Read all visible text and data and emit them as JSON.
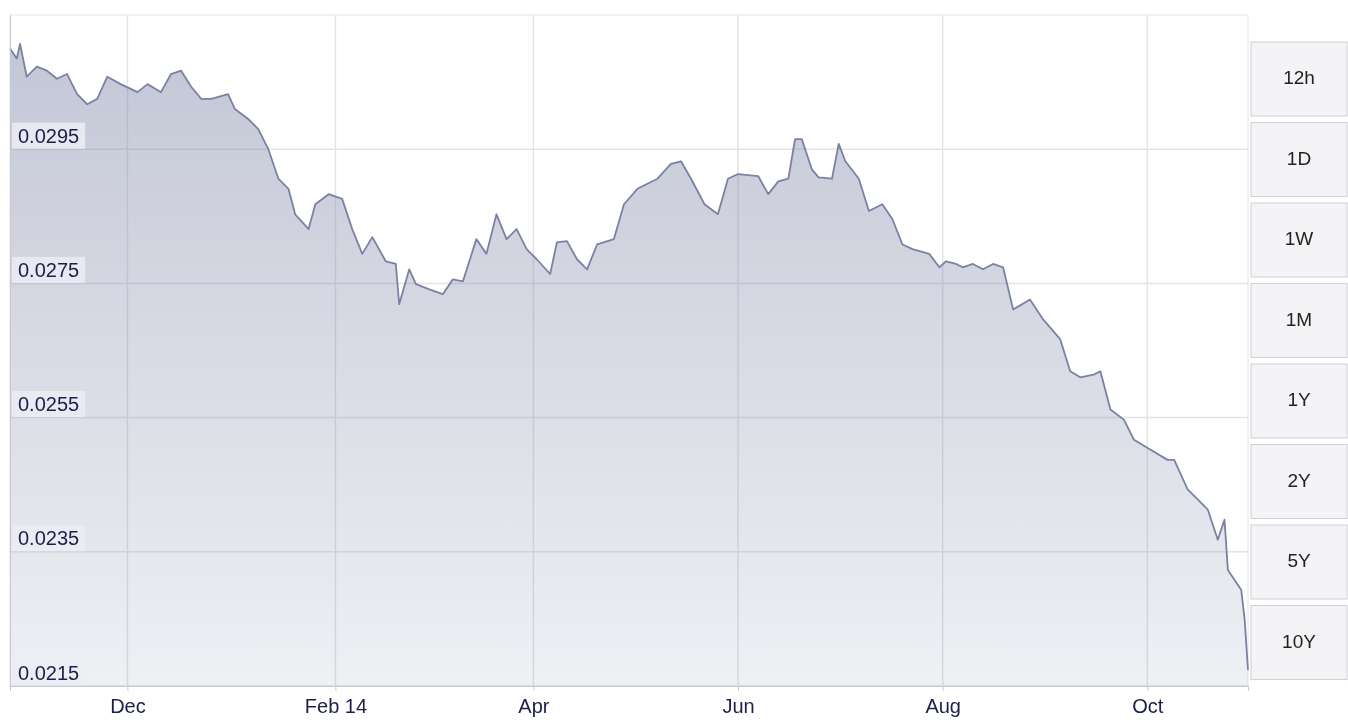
{
  "chart_data": {
    "type": "area",
    "xlim": [
      "2013-10-27",
      "2014-10-31"
    ],
    "ylim": [
      0.0215,
      0.0315
    ],
    "xticks": [
      {
        "value": "2013-12-01",
        "label": "Dec"
      },
      {
        "value": "2014-02-01",
        "label": "Feb 14"
      },
      {
        "value": "2014-04-01",
        "label": "Apr"
      },
      {
        "value": "2014-06-01",
        "label": "Jun"
      },
      {
        "value": "2014-08-01",
        "label": "Aug"
      },
      {
        "value": "2014-10-01",
        "label": "Oct"
      }
    ],
    "yticks": [
      0.0215,
      0.0235,
      0.0255,
      0.0275,
      0.0295
    ],
    "grid": true,
    "annotations": [
      "12h",
      "1D",
      "1W",
      "1M",
      "1Y",
      "2Y",
      "5Y",
      "10Y"
    ],
    "series": [
      {
        "color": "#7a82a3",
        "x": [
          "2013-10-27",
          "2013-10-29",
          "2013-10-30",
          "2013-11-01",
          "2013-11-04",
          "2013-11-07",
          "2013-11-10",
          "2013-11-13",
          "2013-11-16",
          "2013-11-19",
          "2013-11-22",
          "2013-11-25",
          "2013-11-29",
          "2013-12-04",
          "2013-12-07",
          "2013-12-11",
          "2013-12-14",
          "2013-12-17",
          "2013-12-20",
          "2013-12-23",
          "2013-12-26",
          "2013-12-31",
          "2014-01-02",
          "2014-01-06",
          "2014-01-09",
          "2014-01-12",
          "2014-01-15",
          "2014-01-18",
          "2014-01-20",
          "2014-01-24",
          "2014-01-26",
          "2014-01-30",
          "2014-02-03",
          "2014-02-06",
          "2014-02-09",
          "2014-02-12",
          "2014-02-16",
          "2014-02-19",
          "2014-02-20",
          "2014-02-23",
          "2014-02-25",
          "2014-03-01",
          "2014-03-05",
          "2014-03-08",
          "2014-03-11",
          "2014-03-15",
          "2014-03-18",
          "2014-03-21",
          "2014-03-24",
          "2014-03-27",
          "2014-03-30",
          "2014-04-02",
          "2014-04-06",
          "2014-04-08",
          "2014-04-11",
          "2014-04-14",
          "2014-04-17",
          "2014-04-20",
          "2014-04-25",
          "2014-04-28",
          "2014-05-02",
          "2014-05-08",
          "2014-05-12",
          "2014-05-15",
          "2014-05-18",
          "2014-05-22",
          "2014-05-26",
          "2014-05-29",
          "2014-06-01",
          "2014-06-07",
          "2014-06-10",
          "2014-06-13",
          "2014-06-16",
          "2014-06-18",
          "2014-06-20",
          "2014-06-23",
          "2014-06-25",
          "2014-06-29",
          "2014-07-01",
          "2014-07-03",
          "2014-07-07",
          "2014-07-10",
          "2014-07-14",
          "2014-07-17",
          "2014-07-20",
          "2014-07-23",
          "2014-07-28",
          "2014-07-31",
          "2014-08-02",
          "2014-08-05",
          "2014-08-07",
          "2014-08-10",
          "2014-08-13",
          "2014-08-16",
          "2014-08-19",
          "2014-08-22",
          "2014-08-27",
          "2014-08-31",
          "2014-09-05",
          "2014-09-08",
          "2014-09-11",
          "2014-09-15",
          "2014-09-17",
          "2014-09-20",
          "2014-09-24",
          "2014-09-27",
          "2014-10-02",
          "2014-10-07",
          "2014-10-09",
          "2014-10-13",
          "2014-10-16",
          "2014-10-19",
          "2014-10-22",
          "2014-10-24",
          "2014-10-25",
          "2014-10-27",
          "2014-10-29",
          "2014-10-30",
          "2014-10-31"
        ],
        "values": [
          0.031,
          0.03085,
          0.03107,
          0.03058,
          0.03073,
          0.03067,
          0.03055,
          0.03062,
          0.03032,
          0.03017,
          0.03025,
          0.03058,
          0.03047,
          0.03035,
          0.03047,
          0.03035,
          0.03062,
          0.03067,
          0.03043,
          0.03025,
          0.03025,
          0.03032,
          0.0301,
          0.02995,
          0.0298,
          0.0295,
          0.02906,
          0.02891,
          0.02853,
          0.02831,
          0.02868,
          0.02883,
          0.02876,
          0.02831,
          0.02794,
          0.02819,
          0.02783,
          0.02779,
          0.02719,
          0.02771,
          0.02749,
          0.02741,
          0.02734,
          0.02756,
          0.02753,
          0.02816,
          0.02794,
          0.02853,
          0.02816,
          0.02831,
          0.02801,
          0.02786,
          0.02764,
          0.02811,
          0.02813,
          0.02786,
          0.02771,
          0.02808,
          0.02816,
          0.02868,
          0.02891,
          0.02906,
          0.02928,
          0.02932,
          0.02906,
          0.02868,
          0.02853,
          0.02906,
          0.02913,
          0.0291,
          0.02883,
          0.02902,
          0.02906,
          0.02965,
          0.02965,
          0.0292,
          0.02908,
          0.02906,
          0.02958,
          0.02932,
          0.02906,
          0.02858,
          0.02868,
          0.02846,
          0.02808,
          0.02801,
          0.02794,
          0.02774,
          0.02783,
          0.02779,
          0.02774,
          0.02779,
          0.02771,
          0.02779,
          0.02774,
          0.02711,
          0.02726,
          0.02696,
          0.02667,
          0.02619,
          0.0261,
          0.02614,
          0.02619,
          0.02562,
          0.02547,
          0.02517,
          0.02502,
          0.02487,
          0.02487,
          0.02443,
          0.02428,
          0.02413,
          0.02368,
          0.02398,
          0.02323,
          0.02308,
          0.02293,
          0.02249,
          0.02174
        ]
      }
    ]
  }
}
